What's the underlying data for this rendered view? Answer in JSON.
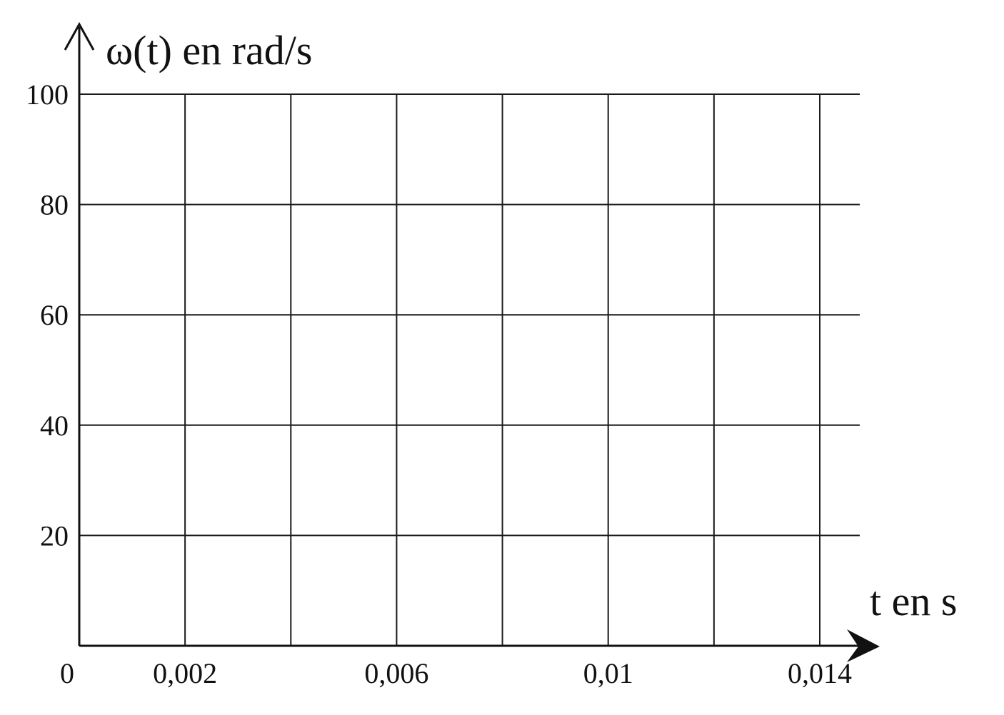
{
  "chart_data": {
    "type": "line",
    "title": "",
    "xlabel": "t en s",
    "ylabel": "ω(t) en rad/s",
    "origin_label": "0",
    "xlim": [
      0,
      0.014
    ],
    "ylim": [
      0,
      100
    ],
    "x_gridlines": [
      0.002,
      0.004,
      0.006,
      0.008,
      0.01,
      0.012,
      0.014
    ],
    "y_gridlines": [
      20,
      40,
      60,
      80,
      100
    ],
    "x_ticks": [
      {
        "value": 0.002,
        "label": "0,002"
      },
      {
        "value": 0.006,
        "label": "0,006"
      },
      {
        "value": 0.01,
        "label": "0,01"
      },
      {
        "value": 0.014,
        "label": "0,014"
      }
    ],
    "y_ticks": [
      {
        "value": 20,
        "label": "20"
      },
      {
        "value": 40,
        "label": "40"
      },
      {
        "value": 60,
        "label": "60"
      },
      {
        "value": 80,
        "label": "80"
      },
      {
        "value": 100,
        "label": "100"
      }
    ],
    "grid": true,
    "series": []
  }
}
